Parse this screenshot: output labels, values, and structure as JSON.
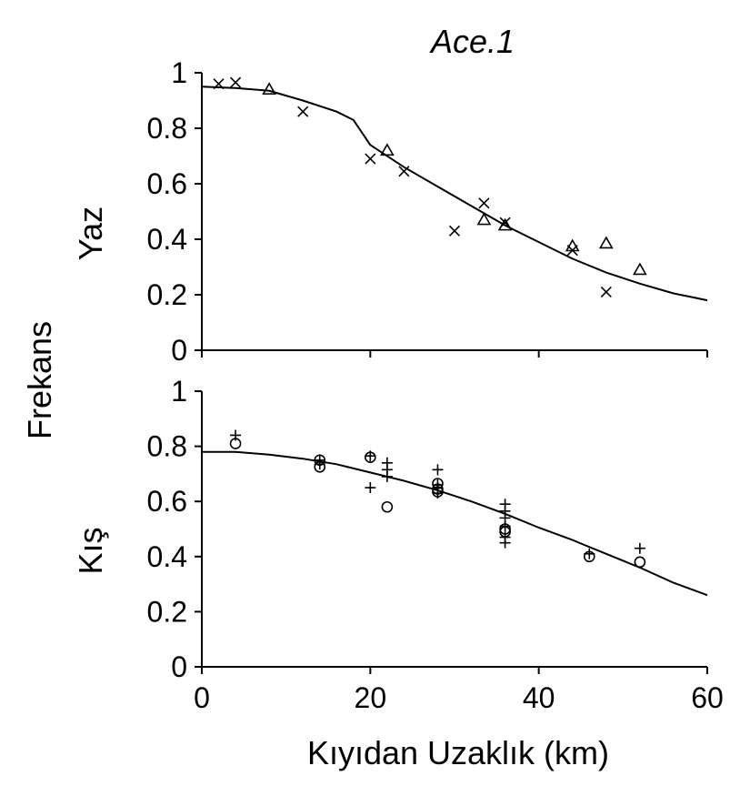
{
  "chart_data": {
    "type": "scatter",
    "title": "Ace.1",
    "shared_ylabel": "Frekans",
    "xlabel": "Kıyıdan Uzaklık (km)",
    "xlim": [
      0,
      60
    ],
    "x_ticks": [
      "0",
      "20",
      "40",
      "60"
    ],
    "x_tick_values": [
      0,
      20,
      40,
      60
    ],
    "panels": [
      {
        "ylabel": "Yaz",
        "ylim": [
          0,
          1
        ],
        "y_ticks": [
          "0",
          "0.2",
          "0.4",
          "0.6",
          "0.8",
          "1"
        ],
        "y_tick_values": [
          0,
          0.2,
          0.4,
          0.6,
          0.8,
          1
        ],
        "series": [
          {
            "name": "cross",
            "marker": "x",
            "x": [
              2,
              4,
              12,
              20,
              24,
              30,
              33.5,
              36,
              44,
              48
            ],
            "y": [
              0.96,
              0.965,
              0.86,
              0.69,
              0.645,
              0.43,
              0.53,
              0.46,
              0.36,
              0.21
            ]
          },
          {
            "name": "triangle",
            "marker": "triangle",
            "x": [
              8,
              22,
              33.5,
              36,
              44,
              48,
              52
            ],
            "y": [
              0.94,
              0.72,
              0.47,
              0.45,
              0.375,
              0.385,
              0.29
            ]
          },
          {
            "name": "fit",
            "marker": "line",
            "x": [
              0,
              4,
              8,
              12,
              16,
              18,
              20,
              24,
              28,
              32,
              36,
              40,
              44,
              48,
              52,
              56,
              60
            ],
            "y": [
              0.95,
              0.945,
              0.935,
              0.9,
              0.86,
              0.83,
              0.74,
              0.66,
              0.59,
              0.52,
              0.45,
              0.39,
              0.33,
              0.28,
              0.24,
              0.205,
              0.18
            ]
          }
        ]
      },
      {
        "ylabel": "Kış",
        "ylim": [
          0,
          1
        ],
        "y_ticks": [
          "0",
          "0.2",
          "0.4",
          "0.6",
          "0.8",
          "1"
        ],
        "y_tick_values": [
          0,
          0.2,
          0.4,
          0.6,
          0.8,
          1
        ],
        "series": [
          {
            "name": "plus",
            "marker": "plus",
            "x": [
              4,
              14,
              14,
              20,
              20,
              22,
              22,
              22,
              28,
              28,
              28,
              36,
              36,
              36,
              36,
              36,
              36,
              46,
              52
            ],
            "y": [
              0.84,
              0.735,
              0.75,
              0.65,
              0.765,
              0.74,
              0.715,
              0.69,
              0.715,
              0.66,
              0.63,
              0.59,
              0.565,
              0.54,
              0.51,
              0.47,
              0.45,
              0.41,
              0.43
            ]
          },
          {
            "name": "circle",
            "marker": "circle",
            "x": [
              4,
              14,
              14,
              20,
              22,
              28,
              28,
              28,
              36,
              36,
              46,
              52
            ],
            "y": [
              0.81,
              0.75,
              0.725,
              0.76,
              0.58,
              0.665,
              0.645,
              0.635,
              0.5,
              0.49,
              0.4,
              0.38
            ]
          },
          {
            "name": "fit",
            "marker": "line",
            "x": [
              0,
              4,
              8,
              12,
              16,
              20,
              24,
              28,
              32,
              36,
              40,
              44,
              48,
              52,
              56,
              60
            ],
            "y": [
              0.78,
              0.78,
              0.77,
              0.755,
              0.735,
              0.705,
              0.675,
              0.64,
              0.6,
              0.555,
              0.505,
              0.46,
              0.41,
              0.36,
              0.305,
              0.26
            ]
          }
        ]
      }
    ]
  }
}
